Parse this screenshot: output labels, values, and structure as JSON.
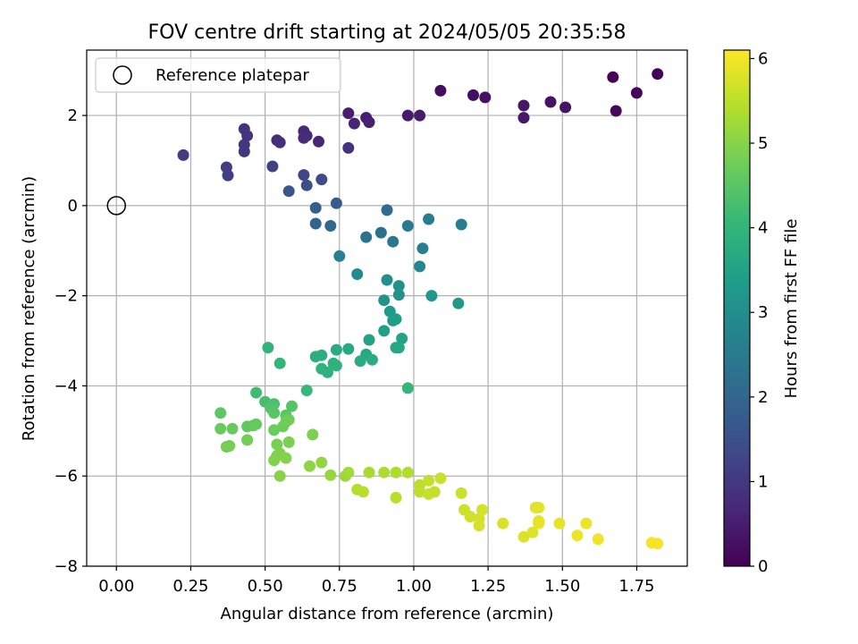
{
  "chart_data": {
    "type": "scatter",
    "title": "FOV centre drift starting at 2024/05/05 20:35:58",
    "xlabel": "Angular distance from reference (arcmin)",
    "ylabel": "Rotation from reference (arcmin)",
    "xlim": [
      -0.1,
      1.92
    ],
    "ylim": [
      -8.0,
      3.45
    ],
    "xticks": [
      0.0,
      0.25,
      0.5,
      0.75,
      1.0,
      1.25,
      1.5,
      1.75
    ],
    "xtick_labels": [
      "0.00",
      "0.25",
      "0.50",
      "0.75",
      "1.00",
      "1.25",
      "1.50",
      "1.75"
    ],
    "yticks": [
      -8,
      -6,
      -4,
      -2,
      0,
      2
    ],
    "ytick_labels": [
      "−8",
      "−6",
      "−4",
      "−2",
      "0",
      "2"
    ],
    "grid": true,
    "legend": {
      "placement": "top-left",
      "entries": [
        "Reference platepar"
      ]
    },
    "reference_point": {
      "x": 0.0,
      "y": 0.0
    },
    "colorbar": {
      "label": "Hours from first FF file",
      "range": [
        0,
        6.1
      ],
      "ticks": [
        0,
        1,
        2,
        3,
        4,
        5,
        6
      ],
      "tick_labels": [
        "0",
        "1",
        "2",
        "3",
        "4",
        "5",
        "6"
      ],
      "colormap": "viridis"
    },
    "points": [
      [
        1.67,
        2.85,
        0.03
      ],
      [
        1.82,
        2.92,
        0.05
      ],
      [
        1.75,
        2.5,
        0.1
      ],
      [
        1.68,
        2.1,
        0.12
      ],
      [
        1.09,
        2.55,
        0.2
      ],
      [
        1.2,
        2.45,
        0.25
      ],
      [
        1.24,
        2.4,
        0.28
      ],
      [
        1.46,
        2.3,
        0.3
      ],
      [
        1.51,
        2.18,
        0.33
      ],
      [
        1.37,
        2.22,
        0.36
      ],
      [
        1.37,
        1.95,
        0.4
      ],
      [
        0.98,
        2.0,
        0.42
      ],
      [
        1.02,
        2.0,
        0.45
      ],
      [
        0.78,
        2.05,
        0.5
      ],
      [
        0.84,
        1.95,
        0.53
      ],
      [
        0.85,
        1.85,
        0.56
      ],
      [
        0.8,
        1.82,
        0.6
      ],
      [
        0.68,
        1.42,
        0.65
      ],
      [
        0.63,
        1.65,
        0.7
      ],
      [
        0.64,
        1.55,
        0.73
      ],
      [
        0.63,
        1.5,
        0.76
      ],
      [
        0.54,
        1.45,
        0.8
      ],
      [
        0.55,
        1.4,
        0.83
      ],
      [
        0.78,
        1.28,
        0.86
      ],
      [
        0.43,
        1.7,
        0.9
      ],
      [
        0.44,
        1.55,
        0.93
      ],
      [
        0.43,
        1.35,
        0.96
      ],
      [
        0.43,
        1.2,
        1.0
      ],
      [
        0.225,
        1.12,
        1.05
      ],
      [
        0.37,
        0.85,
        1.1
      ],
      [
        0.375,
        0.67,
        1.13
      ],
      [
        0.525,
        0.87,
        1.2
      ],
      [
        0.63,
        0.68,
        1.3
      ],
      [
        0.69,
        0.58,
        1.4
      ],
      [
        0.64,
        0.45,
        1.5
      ],
      [
        0.58,
        0.32,
        1.6
      ],
      [
        0.74,
        0.05,
        1.75
      ],
      [
        0.67,
        -0.05,
        1.85
      ],
      [
        0.67,
        -0.4,
        1.95
      ],
      [
        0.72,
        -0.45,
        2.05
      ],
      [
        0.91,
        -0.1,
        2.15
      ],
      [
        0.89,
        -0.6,
        2.25
      ],
      [
        0.84,
        -0.7,
        2.35
      ],
      [
        0.93,
        -0.8,
        2.45
      ],
      [
        0.98,
        -0.45,
        2.5
      ],
      [
        1.05,
        -0.3,
        2.55
      ],
      [
        1.16,
        -0.42,
        2.6
      ],
      [
        1.03,
        -0.95,
        2.65
      ],
      [
        0.75,
        -1.12,
        2.7
      ],
      [
        1.02,
        -1.35,
        2.8
      ],
      [
        0.81,
        -1.52,
        2.9
      ],
      [
        0.91,
        -1.65,
        3.0
      ],
      [
        0.95,
        -1.78,
        3.05
      ],
      [
        0.95,
        -1.98,
        3.1
      ],
      [
        0.9,
        -2.1,
        3.15
      ],
      [
        1.06,
        -2.0,
        3.2
      ],
      [
        1.15,
        -2.17,
        3.25
      ],
      [
        0.92,
        -2.35,
        3.3
      ],
      [
        0.93,
        -2.55,
        3.35
      ],
      [
        0.94,
        -2.52,
        3.4
      ],
      [
        0.9,
        -2.78,
        3.45
      ],
      [
        0.85,
        -2.98,
        3.5
      ],
      [
        0.96,
        -2.95,
        3.55
      ],
      [
        0.94,
        -3.15,
        3.6
      ],
      [
        0.95,
        -3.15,
        3.62
      ],
      [
        0.84,
        -3.3,
        3.65
      ],
      [
        0.78,
        -3.18,
        3.7
      ],
      [
        0.74,
        -3.2,
        3.72
      ],
      [
        0.82,
        -3.45,
        3.75
      ],
      [
        0.86,
        -3.42,
        3.78
      ],
      [
        0.69,
        -3.32,
        3.8
      ],
      [
        0.67,
        -3.35,
        3.82
      ],
      [
        0.73,
        -3.5,
        3.85
      ],
      [
        0.74,
        -3.55,
        3.88
      ],
      [
        0.69,
        -3.62,
        3.9
      ],
      [
        0.71,
        -3.7,
        3.92
      ],
      [
        0.51,
        -3.15,
        3.95
      ],
      [
        0.55,
        -3.5,
        3.98
      ],
      [
        0.98,
        -4.05,
        4.05
      ],
      [
        0.64,
        -4.1,
        4.1
      ],
      [
        0.47,
        -4.15,
        4.2
      ],
      [
        0.5,
        -4.35,
        4.3
      ],
      [
        0.53,
        -4.4,
        4.35
      ],
      [
        0.52,
        -4.5,
        4.4
      ],
      [
        0.59,
        -4.45,
        4.45
      ],
      [
        0.53,
        -4.6,
        4.5
      ],
      [
        0.57,
        -4.65,
        4.52
      ],
      [
        0.35,
        -4.6,
        4.55
      ],
      [
        0.44,
        -4.9,
        4.6
      ],
      [
        0.46,
        -4.88,
        4.62
      ],
      [
        0.47,
        -4.85,
        4.64
      ],
      [
        0.39,
        -4.95,
        4.66
      ],
      [
        0.35,
        -4.95,
        4.68
      ],
      [
        0.53,
        -4.98,
        4.7
      ],
      [
        0.56,
        -4.9,
        4.72
      ],
      [
        0.57,
        -4.8,
        4.74
      ],
      [
        0.58,
        -4.75,
        4.76
      ],
      [
        0.44,
        -5.2,
        4.78
      ],
      [
        0.37,
        -5.35,
        4.8
      ],
      [
        0.38,
        -5.33,
        4.82
      ],
      [
        0.54,
        -5.3,
        4.84
      ],
      [
        0.58,
        -5.25,
        4.86
      ],
      [
        0.66,
        -5.08,
        4.88
      ],
      [
        0.54,
        -5.55,
        4.9
      ],
      [
        0.55,
        -5.5,
        4.92
      ],
      [
        0.53,
        -5.65,
        4.94
      ],
      [
        0.57,
        -5.6,
        4.96
      ],
      [
        0.55,
        -6.0,
        4.98
      ],
      [
        0.65,
        -5.78,
        5.05
      ],
      [
        0.69,
        -5.7,
        5.1
      ],
      [
        0.72,
        -5.98,
        5.15
      ],
      [
        0.77,
        -6.0,
        5.2
      ],
      [
        0.78,
        -5.92,
        5.25
      ],
      [
        0.85,
        -5.92,
        5.3
      ],
      [
        0.9,
        -5.92,
        5.33
      ],
      [
        0.94,
        -5.92,
        5.36
      ],
      [
        0.98,
        -5.92,
        5.39
      ],
      [
        0.81,
        -6.3,
        5.42
      ],
      [
        0.83,
        -6.35,
        5.45
      ],
      [
        0.94,
        -6.48,
        5.48
      ],
      [
        1.02,
        -6.2,
        5.5
      ],
      [
        1.02,
        -6.35,
        5.52
      ],
      [
        1.05,
        -6.1,
        5.54
      ],
      [
        1.05,
        -6.4,
        5.56
      ],
      [
        1.07,
        -6.35,
        5.58
      ],
      [
        1.09,
        -6.05,
        5.6
      ],
      [
        1.16,
        -6.38,
        5.62
      ],
      [
        1.17,
        -6.75,
        5.65
      ],
      [
        1.19,
        -6.9,
        5.68
      ],
      [
        1.22,
        -6.95,
        5.7
      ],
      [
        1.23,
        -6.75,
        5.72
      ],
      [
        1.22,
        -7.1,
        5.74
      ],
      [
        1.3,
        -7.05,
        5.76
      ],
      [
        1.37,
        -7.35,
        5.78
      ],
      [
        1.4,
        -7.25,
        5.8
      ],
      [
        1.41,
        -6.7,
        5.82
      ],
      [
        1.42,
        -6.7,
        5.84
      ],
      [
        1.42,
        -7.0,
        5.86
      ],
      [
        1.42,
        -7.05,
        5.88
      ],
      [
        1.49,
        -7.05,
        5.9
      ],
      [
        1.55,
        -7.32,
        5.92
      ],
      [
        1.58,
        -7.05,
        5.94
      ],
      [
        1.62,
        -7.4,
        5.96
      ],
      [
        1.8,
        -7.48,
        6.0
      ],
      [
        1.82,
        -7.5,
        6.02
      ]
    ]
  }
}
